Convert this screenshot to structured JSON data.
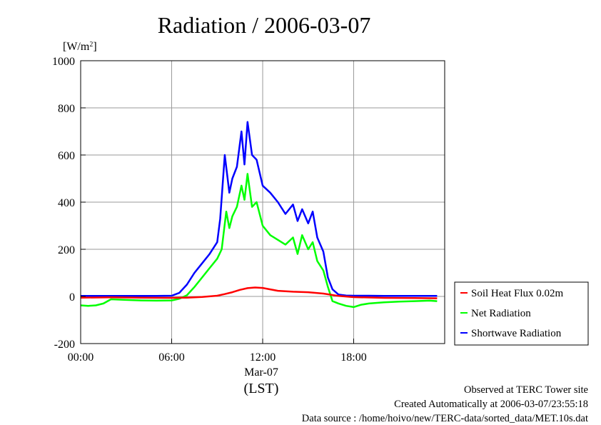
{
  "chart_data": {
    "type": "line",
    "title": "Radiation / 2006-03-07",
    "ylabel_unit": "[W/m",
    "ylabel_sup": "2",
    "ylabel_close": "]",
    "xlabel": "(LST)",
    "date_label": "Mar-07",
    "ylim": [
      -200,
      1000
    ],
    "yticks": [
      -200,
      0,
      200,
      400,
      600,
      800,
      1000
    ],
    "xlim_hours": [
      0,
      24
    ],
    "xticks": [
      {
        "hour": 0,
        "label": "00:00"
      },
      {
        "hour": 6,
        "label": "06:00"
      },
      {
        "hour": 12,
        "label": "12:00"
      },
      {
        "hour": 18,
        "label": "18:00"
      }
    ],
    "grid": true,
    "legend_position": "right",
    "series": [
      {
        "name": "Soil Heat Flux 0.02m",
        "color": "#ff0000",
        "x": [
          0,
          2,
          4,
          6,
          7,
          8,
          9,
          9.5,
          10,
          10.5,
          11,
          11.5,
          12,
          12.5,
          13,
          14,
          15,
          16,
          17,
          18,
          20,
          22,
          23.5
        ],
        "y": [
          -5,
          -4,
          -5,
          -6,
          -5,
          -2,
          3,
          10,
          18,
          28,
          35,
          38,
          36,
          30,
          24,
          20,
          18,
          12,
          2,
          -3,
          -6,
          -7,
          -8
        ]
      },
      {
        "name": "Net Radiation",
        "color": "#00ff00",
        "x": [
          0,
          0.5,
          1,
          1.5,
          2,
          3,
          4,
          5,
          6,
          6.5,
          7,
          7.5,
          8,
          8.5,
          9,
          9.3,
          9.6,
          9.8,
          10,
          10.3,
          10.6,
          10.8,
          11,
          11.3,
          11.6,
          12,
          12.5,
          13,
          13.5,
          14,
          14.3,
          14.6,
          15,
          15.3,
          15.6,
          16,
          16.3,
          16.6,
          17,
          17.5,
          18,
          18.5,
          19,
          20,
          21,
          22,
          23,
          23.5
        ],
        "y": [
          -38,
          -40,
          -38,
          -30,
          -12,
          -15,
          -17,
          -18,
          -17,
          -10,
          5,
          40,
          80,
          120,
          160,
          200,
          360,
          290,
          340,
          380,
          470,
          410,
          520,
          380,
          400,
          300,
          260,
          240,
          220,
          250,
          180,
          260,
          200,
          230,
          150,
          110,
          40,
          -20,
          -30,
          -40,
          -45,
          -35,
          -30,
          -25,
          -22,
          -20,
          -18,
          -20
        ]
      },
      {
        "name": "Shortwave Radiation",
        "color": "#0000ff",
        "x": [
          0,
          2,
          4,
          5,
          6,
          6.5,
          7,
          7.5,
          8,
          8.5,
          9,
          9.2,
          9.5,
          9.8,
          10,
          10.3,
          10.6,
          10.8,
          11,
          11.3,
          11.6,
          12,
          12.5,
          13,
          13.5,
          14,
          14.3,
          14.6,
          15,
          15.3,
          15.6,
          16,
          16.3,
          16.6,
          17,
          17.5,
          18,
          19,
          20,
          22,
          23.5
        ],
        "y": [
          2,
          2,
          2,
          2,
          3,
          15,
          50,
          100,
          140,
          180,
          230,
          330,
          600,
          440,
          500,
          550,
          700,
          560,
          740,
          600,
          580,
          470,
          440,
          400,
          350,
          390,
          320,
          370,
          310,
          360,
          250,
          190,
          80,
          30,
          8,
          4,
          3,
          3,
          2,
          2,
          2
        ]
      }
    ]
  },
  "footer": {
    "observed": "Observed at TERC Tower site",
    "created": "Created Automatically at 2006-03-07/23:55:18",
    "source": "Data source : /home/hoivo/new/TERC-data/sorted_data/MET.10s.dat"
  }
}
